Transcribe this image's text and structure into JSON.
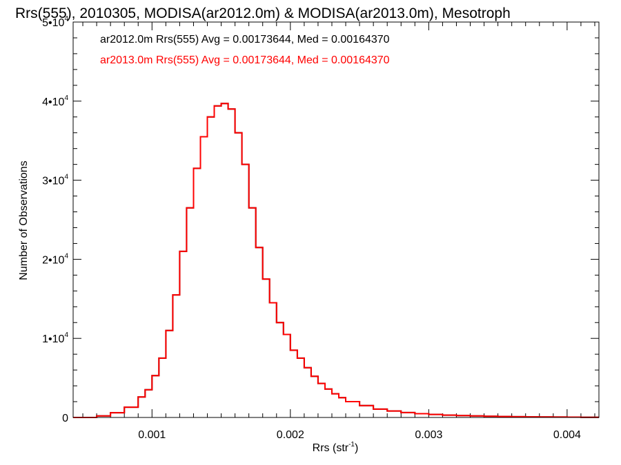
{
  "chart_data": {
    "type": "line",
    "title": "Rrs(555), 2010305, MODISA(ar2012.0m) & MODISA(ar2013.0m), Mesotroph",
    "xlabel": "Rrs (str",
    "xlabel_sup": "-1",
    "xlabel_close": ")",
    "ylabel": "Number of Observations",
    "xlim": [
      0.00043,
      0.00423
    ],
    "ylim": [
      0,
      50000
    ],
    "x_ticks": [
      {
        "value": 0.001,
        "label": "0.001"
      },
      {
        "value": 0.002,
        "label": "0.002"
      },
      {
        "value": 0.003,
        "label": "0.003"
      },
      {
        "value": 0.004,
        "label": "0.004"
      }
    ],
    "y_ticks": [
      {
        "value": 0,
        "label": "0"
      },
      {
        "value": 10000,
        "base": "1•10",
        "exp": "4"
      },
      {
        "value": 20000,
        "base": "2•10",
        "exp": "4"
      },
      {
        "value": 30000,
        "base": "3•10",
        "exp": "4"
      },
      {
        "value": 40000,
        "base": "4•10",
        "exp": "4"
      },
      {
        "value": 50000,
        "base": "5•10",
        "exp": "4"
      }
    ],
    "grid": false,
    "annotations": [
      {
        "text": "ar2012.0m Rrs(555) Avg = 0.00173644, Med = 0.00164370",
        "color": "#000000"
      },
      {
        "text": "ar2013.0m Rrs(555) Avg = 0.00173644, Med = 0.00164370",
        "color": "#ff0000"
      }
    ],
    "series": [
      {
        "color": "#000000",
        "x": [
          0.00043,
          0.0005,
          0.0006,
          0.0007,
          0.0008,
          0.0009,
          0.00095,
          0.001,
          0.00105,
          0.0011,
          0.00115,
          0.0012,
          0.00125,
          0.0013,
          0.00135,
          0.0014,
          0.00145,
          0.0015,
          0.00155,
          0.0016,
          0.00165,
          0.0017,
          0.00175,
          0.0018,
          0.00185,
          0.0019,
          0.00195,
          0.002,
          0.00205,
          0.0021,
          0.00215,
          0.0022,
          0.00225,
          0.0023,
          0.00235,
          0.0024,
          0.0025,
          0.0026,
          0.0027,
          0.0028,
          0.0029,
          0.003,
          0.0031,
          0.0032,
          0.0033,
          0.0034,
          0.0035,
          0.0036,
          0.0037,
          0.0038,
          0.0039,
          0.004,
          0.0041,
          0.0042,
          0.00423
        ],
        "y": [
          0,
          0,
          200,
          600,
          1300,
          2600,
          3500,
          5300,
          7500,
          11000,
          15500,
          21000,
          26500,
          31500,
          35500,
          38000,
          39400,
          39700,
          39000,
          36000,
          32000,
          26500,
          21500,
          17500,
          14500,
          12000,
          10500,
          8500,
          7500,
          6300,
          5200,
          4300,
          3600,
          3000,
          2500,
          2000,
          1500,
          1050,
          820,
          620,
          480,
          380,
          300,
          240,
          190,
          150,
          120,
          100,
          80,
          60,
          50,
          40,
          30,
          20,
          20
        ]
      },
      {
        "color": "#ff0000",
        "x": [
          0.00043,
          0.0005,
          0.0006,
          0.0007,
          0.0008,
          0.0009,
          0.00095,
          0.001,
          0.00105,
          0.0011,
          0.00115,
          0.0012,
          0.00125,
          0.0013,
          0.00135,
          0.0014,
          0.00145,
          0.0015,
          0.00155,
          0.0016,
          0.00165,
          0.0017,
          0.00175,
          0.0018,
          0.00185,
          0.0019,
          0.00195,
          0.002,
          0.00205,
          0.0021,
          0.00215,
          0.0022,
          0.00225,
          0.0023,
          0.00235,
          0.0024,
          0.0025,
          0.0026,
          0.0027,
          0.0028,
          0.0029,
          0.003,
          0.0031,
          0.0032,
          0.0033,
          0.0034,
          0.0035,
          0.0036,
          0.0037,
          0.0038,
          0.0039,
          0.004,
          0.0041,
          0.0042,
          0.00423
        ],
        "y": [
          0,
          0,
          200,
          600,
          1300,
          2600,
          3500,
          5300,
          7500,
          11000,
          15500,
          21000,
          26500,
          31500,
          35500,
          38000,
          39400,
          39700,
          39000,
          36000,
          32000,
          26500,
          21500,
          17500,
          14500,
          12000,
          10500,
          8500,
          7500,
          6300,
          5200,
          4300,
          3600,
          3000,
          2500,
          2000,
          1500,
          1050,
          820,
          620,
          480,
          380,
          300,
          240,
          190,
          150,
          120,
          100,
          80,
          60,
          50,
          40,
          30,
          20,
          20
        ]
      }
    ]
  }
}
